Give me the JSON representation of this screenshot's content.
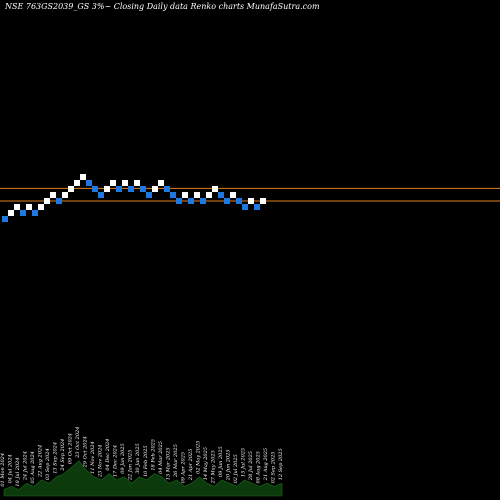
{
  "title": "NSE 763GS2039_GS 3%~  Closing Daily data  Renko  charts MunafaSutra.com",
  "chart_data": {
    "type": "renko",
    "colors": {
      "up": "#ffffff",
      "down": "#1e7ae0",
      "resistance": "#e08020",
      "support": "#e08020",
      "volume": "#0c3a0c",
      "volume_outline": "#1a6a1a"
    },
    "brick_size_units": 1,
    "bricks": [
      {
        "level": -1,
        "dir": "down"
      },
      {
        "level": 0,
        "dir": "up"
      },
      {
        "level": 1,
        "dir": "up"
      },
      {
        "level": 0,
        "dir": "down"
      },
      {
        "level": 1,
        "dir": "up"
      },
      {
        "level": 0,
        "dir": "down"
      },
      {
        "level": 1,
        "dir": "up"
      },
      {
        "level": 2,
        "dir": "up"
      },
      {
        "level": 3,
        "dir": "up"
      },
      {
        "level": 2,
        "dir": "down"
      },
      {
        "level": 3,
        "dir": "up"
      },
      {
        "level": 4,
        "dir": "up"
      },
      {
        "level": 5,
        "dir": "up"
      },
      {
        "level": 6,
        "dir": "up"
      },
      {
        "level": 5,
        "dir": "down"
      },
      {
        "level": 4,
        "dir": "down"
      },
      {
        "level": 3,
        "dir": "down"
      },
      {
        "level": 4,
        "dir": "up"
      },
      {
        "level": 5,
        "dir": "up"
      },
      {
        "level": 4,
        "dir": "down"
      },
      {
        "level": 5,
        "dir": "up"
      },
      {
        "level": 4,
        "dir": "down"
      },
      {
        "level": 5,
        "dir": "up"
      },
      {
        "level": 4,
        "dir": "down"
      },
      {
        "level": 3,
        "dir": "down"
      },
      {
        "level": 4,
        "dir": "up"
      },
      {
        "level": 5,
        "dir": "up"
      },
      {
        "level": 4,
        "dir": "down"
      },
      {
        "level": 3,
        "dir": "down"
      },
      {
        "level": 2,
        "dir": "down"
      },
      {
        "level": 3,
        "dir": "up"
      },
      {
        "level": 2,
        "dir": "down"
      },
      {
        "level": 3,
        "dir": "up"
      },
      {
        "level": 2,
        "dir": "down"
      },
      {
        "level": 3,
        "dir": "up"
      },
      {
        "level": 4,
        "dir": "up"
      },
      {
        "level": 3,
        "dir": "down"
      },
      {
        "level": 2,
        "dir": "down"
      },
      {
        "level": 3,
        "dir": "up"
      },
      {
        "level": 2,
        "dir": "down"
      },
      {
        "level": 1,
        "dir": "down"
      },
      {
        "level": 2,
        "dir": "up"
      },
      {
        "level": 1,
        "dir": "down"
      },
      {
        "level": 2,
        "dir": "up"
      }
    ],
    "resistance_level": 4.1,
    "support_level": 2.0,
    "volume": [
      {
        "date_label": "01 Mon 2024",
        "value": 2
      },
      {
        "date_label": "04 Jul 2024",
        "value": 3
      },
      {
        "date_label": "18 Jul 2024",
        "value": 2
      },
      {
        "date_label": "24 Jul 2024",
        "value": 4
      },
      {
        "date_label": "05 Aug 2024",
        "value": 3
      },
      {
        "date_label": "22 Aug 2024",
        "value": 5
      },
      {
        "date_label": "03 Sep 2024",
        "value": 4
      },
      {
        "date_label": "13 Sep 2024",
        "value": 6
      },
      {
        "date_label": "24 Sep 2024",
        "value": 7
      },
      {
        "date_label": "09 Oct 2024",
        "value": 9
      },
      {
        "date_label": "23 Oct 2024",
        "value": 11
      },
      {
        "date_label": "29 Oct 2024",
        "value": 8
      },
      {
        "date_label": "11 Nov 2024",
        "value": 6
      },
      {
        "date_label": "23 Nov 2024",
        "value": 5
      },
      {
        "date_label": "04 Dec 2024",
        "value": 7
      },
      {
        "date_label": "17 Dec 2024",
        "value": 5
      },
      {
        "date_label": "09 Jan 2025",
        "value": 6
      },
      {
        "date_label": "22 Jan 2025",
        "value": 4
      },
      {
        "date_label": "30 Jan 2025",
        "value": 6
      },
      {
        "date_label": "10 Feb 2025",
        "value": 5
      },
      {
        "date_label": "18 Feb 2025",
        "value": 7
      },
      {
        "date_label": "04 Mar 2025",
        "value": 6
      },
      {
        "date_label": "13 Mar 2025",
        "value": 4
      },
      {
        "date_label": "26 Mar 2025",
        "value": 5
      },
      {
        "date_label": "09 Apr 2025",
        "value": 3
      },
      {
        "date_label": "21 Apr 2025",
        "value": 4
      },
      {
        "date_label": "02 May 2025",
        "value": 6
      },
      {
        "date_label": "14 May 2025",
        "value": 4
      },
      {
        "date_label": "27 May 2025",
        "value": 3
      },
      {
        "date_label": "09 Jun 2025",
        "value": 5
      },
      {
        "date_label": "20 Jun 2025",
        "value": 4
      },
      {
        "date_label": "02 Jul 2025",
        "value": 3
      },
      {
        "date_label": "15 Jul 2025",
        "value": 5
      },
      {
        "date_label": "28 Jul 2025",
        "value": 4
      },
      {
        "date_label": "08 Aug 2025",
        "value": 3
      },
      {
        "date_label": "21 Aug 2025",
        "value": 4
      },
      {
        "date_label": "02 Sep 2025",
        "value": 3
      },
      {
        "date_label": "12 Sep 2025",
        "value": 4
      }
    ]
  }
}
